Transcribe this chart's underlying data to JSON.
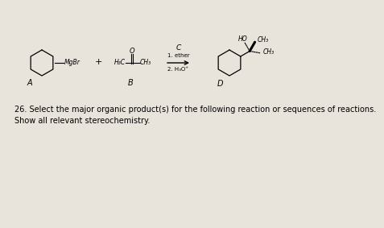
{
  "bg_color": "#e8e4dc",
  "paper_color": "#e8e4dc",
  "title_text1": "26. Select the major organic product(s) for the following reaction or sequences of reactions.",
  "title_text2": "Show all relevant stereochemistry.",
  "title_fontsize": 7.0,
  "label_A": "A",
  "label_B": "B",
  "label_D": "D",
  "label_C": "C",
  "reagent1": "1. ether",
  "reagent2": "2. H₃O⁺",
  "grignard": "MgBr",
  "ketone_left": "H₃C",
  "ketone_right": "CH₃",
  "carbonyl": "O",
  "product_oh": "HO",
  "product_ch3_upper": "CH₃",
  "product_ch3_lower": "CH₃"
}
